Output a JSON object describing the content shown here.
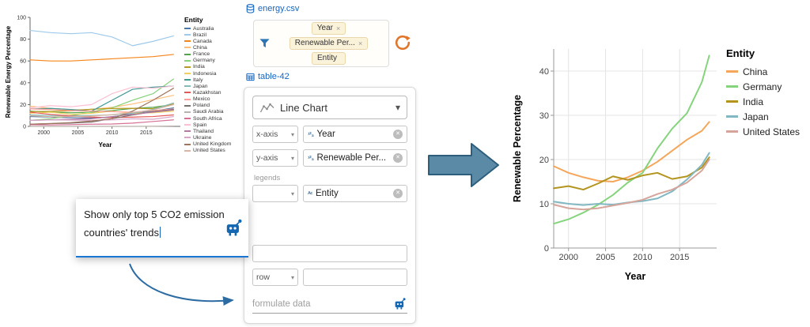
{
  "dataset_header": {
    "name": "energy.csv"
  },
  "table_header": {
    "name": "table-42"
  },
  "fields_box": {
    "pills": [
      {
        "label": "Year",
        "x": "×"
      },
      {
        "label": "Renewable Per...",
        "x": "×"
      },
      {
        "label": "Entity",
        "x": ""
      }
    ]
  },
  "config_panel": {
    "chart_type_label": "Line Chart",
    "legends_label": "legends",
    "encodings": {
      "x": {
        "channel": "x-axis",
        "type_icon": "¹²₃",
        "field": "Year"
      },
      "y": {
        "channel": "y-axis",
        "type_icon": "¹²₃",
        "field": "Renewable Per..."
      },
      "color": {
        "channel": "",
        "type_icon": "ᴬᶜ",
        "field": "Entity"
      },
      "column": {
        "channel": "",
        "type_icon": "",
        "field": ""
      },
      "row": {
        "channel": "row",
        "type_icon": "",
        "field": ""
      }
    },
    "formulate_input": {
      "placeholder": "formulate data"
    }
  },
  "popup": {
    "line1": "Show only top 5 CO2 emission",
    "line2": "countries' trends"
  },
  "glyphs": {
    "caret_down": "▾",
    "remove": "✕"
  },
  "colors": {
    "accent_blue": "#1565c0",
    "underline_blue": "#1976d2",
    "sync_orange": "#e0762b",
    "flow_arrow_fill": "#5b8aa6",
    "flow_arrow_stroke": "#2d5f7d",
    "curve_arrow": "#2d6ca3"
  },
  "chart_data": [
    {
      "id": "source-chart",
      "type": "line",
      "title": "",
      "xlabel": "Year",
      "ylabel": "Renewable Energy Percentage",
      "legend_title": "Entity",
      "legend_position": "right",
      "grid": false,
      "xlim": [
        1998,
        2020
      ],
      "ylim": [
        0,
        100
      ],
      "xticks": [
        2000,
        2005,
        2010,
        2015
      ],
      "yticks": [
        0,
        20,
        40,
        60,
        80,
        100
      ],
      "x": [
        1998,
        2001,
        2004,
        2007,
        2010,
        2013,
        2016,
        2019
      ],
      "series": [
        {
          "name": "Australia",
          "color": "#4c78a8",
          "values": [
            9,
            8.5,
            8,
            7.5,
            8.5,
            12,
            14,
            17
          ]
        },
        {
          "name": "Brazil",
          "color": "#9ecae9",
          "values": [
            88,
            86,
            85,
            86,
            82,
            74,
            78,
            83
          ]
        },
        {
          "name": "Canada",
          "color": "#f58518",
          "values": [
            61,
            60,
            60,
            61,
            62,
            63,
            64,
            66
          ]
        },
        {
          "name": "China",
          "color": "#ffbf79",
          "values": [
            18.5,
            16.5,
            15.2,
            15.5,
            17.5,
            20.5,
            24.5,
            28.5
          ]
        },
        {
          "name": "France",
          "color": "#54a24b",
          "values": [
            14,
            13,
            12.5,
            13,
            14.5,
            16.5,
            17.5,
            20
          ]
        },
        {
          "name": "Germany",
          "color": "#88d27a",
          "values": [
            5.5,
            7,
            9.8,
            13.5,
            17,
            24,
            30,
            43.5
          ]
        },
        {
          "name": "India",
          "color": "#b79a20",
          "values": [
            13.5,
            13.8,
            14.2,
            15.8,
            16.4,
            16.6,
            16.2,
            20.5
          ]
        },
        {
          "name": "Indonesia",
          "color": "#f2cf5b",
          "values": [
            12,
            13,
            11,
            12,
            14,
            12,
            12.5,
            14
          ]
        },
        {
          "name": "Italy",
          "color": "#439894",
          "values": [
            16,
            16.5,
            15.5,
            14,
            24,
            34,
            36,
            37
          ]
        },
        {
          "name": "Japan",
          "color": "#83bcb6",
          "values": [
            10.5,
            10,
            9.8,
            10,
            10.6,
            12,
            15.5,
            21.5
          ]
        },
        {
          "name": "Kazakhstan",
          "color": "#e45756",
          "values": [
            13,
            11,
            9.5,
            8.5,
            8,
            8.5,
            9,
            10.5
          ]
        },
        {
          "name": "Mexico",
          "color": "#ff9d98",
          "values": [
            16,
            15.5,
            14.5,
            14,
            13.5,
            13,
            14.5,
            16
          ]
        },
        {
          "name": "Poland",
          "color": "#79706e",
          "values": [
            2,
            2.5,
            3,
            4,
            7,
            10.5,
            13.5,
            15.5
          ]
        },
        {
          "name": "Saudi Arabia",
          "color": "#bab0ac",
          "values": [
            0,
            0,
            0,
            0,
            0,
            0,
            0.1,
            0.3
          ]
        },
        {
          "name": "South Africa",
          "color": "#d67195",
          "values": [
            1.5,
            1.3,
            1.6,
            2,
            2.2,
            3,
            4.5,
            6
          ]
        },
        {
          "name": "Spain",
          "color": "#fcbfd2",
          "values": [
            17,
            19,
            18,
            20,
            30,
            36,
            35,
            37
          ]
        },
        {
          "name": "Thailand",
          "color": "#b279a2",
          "values": [
            5.5,
            6,
            6.5,
            7,
            9,
            11,
            13,
            15
          ]
        },
        {
          "name": "Ukraine",
          "color": "#d6a5c9",
          "values": [
            5.5,
            6,
            5.8,
            5.5,
            6,
            7,
            6.5,
            9
          ]
        },
        {
          "name": "United Kingdom",
          "color": "#9e765f",
          "values": [
            2,
            2.6,
            3.5,
            5,
            7,
            14,
            24,
            35
          ]
        },
        {
          "name": "United States",
          "color": "#d8b5a5",
          "values": [
            9.8,
            8.8,
            9,
            9.4,
            10.8,
            12.8,
            15,
            20
          ]
        }
      ]
    },
    {
      "id": "result-chart",
      "type": "line",
      "title": "",
      "xlabel": "Year",
      "ylabel": "Renewable Percentage",
      "legend_title": "Entity",
      "legend_position": "right",
      "grid": true,
      "xlim": [
        1998,
        2020
      ],
      "ylim": [
        0,
        45
      ],
      "xticks": [
        2000,
        2005,
        2010,
        2015
      ],
      "yticks": [
        0,
        10,
        20,
        30,
        40
      ],
      "x": [
        1998,
        2000,
        2002,
        2004,
        2006,
        2008,
        2010,
        2012,
        2014,
        2016,
        2018,
        2019
      ],
      "series": [
        {
          "name": "China",
          "color": "#f5a65a",
          "values": [
            18.5,
            17.0,
            16.0,
            15.2,
            15.0,
            16.0,
            17.5,
            19.5,
            22.0,
            24.5,
            26.5,
            28.5
          ]
        },
        {
          "name": "Germany",
          "color": "#85d47d",
          "values": [
            5.5,
            6.5,
            8.0,
            9.8,
            12.0,
            14.8,
            17.0,
            22.5,
            27.0,
            30.5,
            37.5,
            43.5
          ]
        },
        {
          "name": "India",
          "color": "#b3941f",
          "values": [
            13.5,
            14.0,
            13.2,
            14.6,
            16.2,
            15.4,
            16.4,
            17.0,
            15.6,
            16.2,
            18.2,
            20.5
          ]
        },
        {
          "name": "Japan",
          "color": "#82b8c2",
          "values": [
            10.5,
            10.0,
            9.7,
            10.0,
            9.8,
            10.3,
            10.6,
            11.2,
            12.8,
            15.5,
            18.8,
            21.5
          ]
        },
        {
          "name": "United States",
          "color": "#d5a59c",
          "values": [
            9.8,
            9.0,
            8.7,
            9.0,
            9.6,
            10.2,
            10.9,
            12.2,
            13.2,
            14.8,
            17.5,
            20.0
          ]
        }
      ]
    }
  ]
}
